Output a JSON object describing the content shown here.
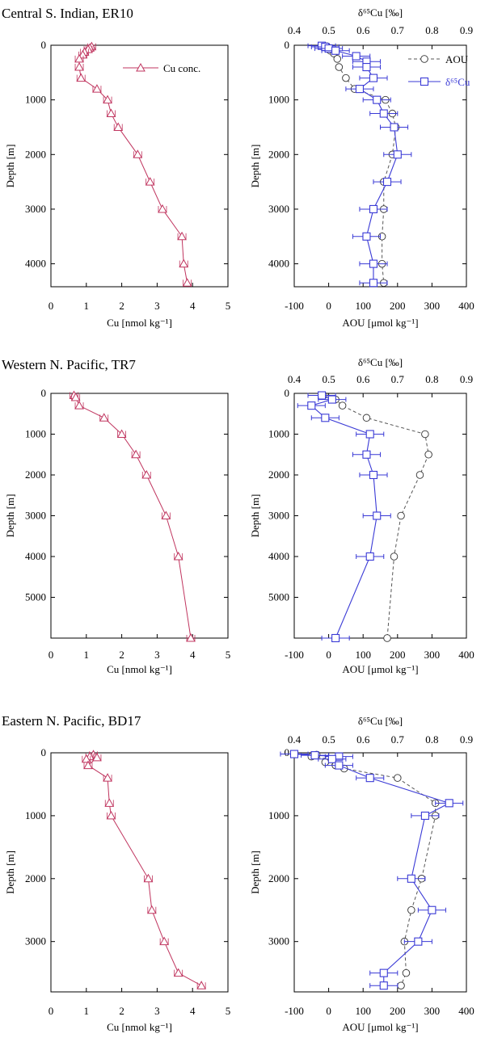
{
  "colors": {
    "cu": "#c0355f",
    "d65": "#3a3ad6",
    "aou": "#555555",
    "frame": "#000000"
  },
  "marker_names": {
    "cu": "triangle",
    "d65": "square",
    "aou": "circle"
  },
  "labels": {
    "cu_x": "Cu [nmol kg⁻¹]",
    "depth": "Depth [m]",
    "aou_x": "AOU [μmol kg⁻¹]",
    "d65_x": "δ⁶⁵Cu [‰]",
    "legend_cu": "Cu conc.",
    "legend_aou": "AOU",
    "legend_d65": "δ⁶⁵Cu"
  },
  "panels": [
    {
      "title": "Central S. Indian, ER10",
      "depth_max": 4420,
      "depth_ticks": [
        0,
        1000,
        2000,
        3000,
        4000
      ],
      "show_legend": true
    },
    {
      "title": "Western N. Pacific, TR7",
      "depth_max": 6000,
      "depth_ticks": [
        0,
        1000,
        2000,
        3000,
        4000,
        5000
      ],
      "show_legend": false
    },
    {
      "title": "Eastern N. Pacific, BD17",
      "depth_max": 3800,
      "depth_ticks": [
        0,
        1000,
        2000,
        3000
      ],
      "show_legend": false
    }
  ],
  "axes": {
    "cu_range": [
      0,
      5
    ],
    "cu_ticks": [
      0,
      1,
      2,
      3,
      4,
      5
    ],
    "aou_range": [
      -100,
      400
    ],
    "aou_ticks": [
      -100,
      0,
      100,
      200,
      300,
      400
    ],
    "d65_range": [
      0.4,
      0.9
    ],
    "d65_ticks": [
      0.4,
      0.5,
      0.6,
      0.7,
      0.8,
      0.9
    ],
    "d65_tick_text": [
      "0.4",
      "0.5",
      "0.6",
      "0.7",
      "0.8",
      "0.9"
    ]
  },
  "chart_data": [
    {
      "type": "line",
      "panel": 0,
      "title": "Central S. Indian, ER10",
      "xlabel": "Cu [nmol kg⁻¹]",
      "ylabel": "Depth [m]",
      "series": [
        {
          "name": "Cu conc.",
          "points": [
            [
              1.15,
              25
            ],
            [
              1.1,
              50
            ],
            [
              1.05,
              75
            ],
            [
              0.95,
              125
            ],
            [
              0.9,
              175
            ],
            [
              0.8,
              250
            ],
            [
              0.8,
              400
            ],
            [
              0.85,
              600
            ],
            [
              1.3,
              800
            ],
            [
              1.6,
              1000
            ],
            [
              1.7,
              1250
            ],
            [
              1.9,
              1500
            ],
            [
              2.45,
              2000
            ],
            [
              2.8,
              2500
            ],
            [
              3.15,
              3000
            ],
            [
              3.7,
              3500
            ],
            [
              3.75,
              4000
            ],
            [
              3.85,
              4350
            ]
          ]
        }
      ]
    },
    {
      "type": "line",
      "panel": 0,
      "title": "Central S. Indian, ER10",
      "xlabel": "AOU [μmol kg⁻¹]",
      "x2label": "δ⁶⁵Cu [‰]",
      "ylabel": "Depth [m]",
      "series": [
        {
          "name": "AOU",
          "axis": "AOU",
          "points": [
            [
              -5,
              20
            ],
            [
              0,
              60
            ],
            [
              5,
              100
            ],
            [
              15,
              150
            ],
            [
              25,
              250
            ],
            [
              30,
              400
            ],
            [
              50,
              600
            ],
            [
              75,
              800
            ],
            [
              165,
              1000
            ],
            [
              185,
              1250
            ],
            [
              195,
              1500
            ],
            [
              185,
              2000
            ],
            [
              160,
              2500
            ],
            [
              160,
              3000
            ],
            [
              155,
              3500
            ],
            [
              155,
              4000
            ],
            [
              160,
              4350
            ]
          ]
        },
        {
          "name": "δ⁶⁵Cu",
          "axis": "d65",
          "points": [
            [
              0.48,
              10
            ],
            [
              0.49,
              30
            ],
            [
              0.5,
              60
            ],
            [
              0.52,
              100
            ],
            [
              0.58,
              200
            ],
            [
              0.61,
              300
            ],
            [
              0.61,
              400
            ],
            [
              0.63,
              600
            ],
            [
              0.59,
              800
            ],
            [
              0.64,
              1000
            ],
            [
              0.66,
              1250
            ],
            [
              0.69,
              1500
            ],
            [
              0.7,
              2000
            ],
            [
              0.67,
              2500
            ],
            [
              0.63,
              3000
            ],
            [
              0.61,
              3500
            ],
            [
              0.63,
              4000
            ],
            [
              0.63,
              4350
            ]
          ],
          "error": 0.04
        }
      ]
    },
    {
      "type": "line",
      "panel": 1,
      "title": "Western N. Pacific, TR7",
      "xlabel": "Cu [nmol kg⁻¹]",
      "ylabel": "Depth [m]",
      "series": [
        {
          "name": "Cu conc.",
          "points": [
            [
              0.65,
              50
            ],
            [
              0.7,
              100
            ],
            [
              0.8,
              300
            ],
            [
              1.5,
              600
            ],
            [
              2.0,
              1000
            ],
            [
              2.4,
              1500
            ],
            [
              2.7,
              2000
            ],
            [
              3.25,
              3000
            ],
            [
              3.6,
              4000
            ],
            [
              3.95,
              6000
            ]
          ]
        }
      ]
    },
    {
      "type": "line",
      "panel": 1,
      "title": "Western N. Pacific, TR7",
      "xlabel": "AOU [μmol kg⁻¹]",
      "x2label": "δ⁶⁵Cu [‰]",
      "ylabel": "Depth [m]",
      "series": [
        {
          "name": "AOU",
          "axis": "AOU",
          "points": [
            [
              -15,
              50
            ],
            [
              20,
              150
            ],
            [
              40,
              300
            ],
            [
              110,
              600
            ],
            [
              280,
              1000
            ],
            [
              290,
              1500
            ],
            [
              265,
              2000
            ],
            [
              210,
              3000
            ],
            [
              190,
              4000
            ],
            [
              170,
              6000
            ]
          ]
        },
        {
          "name": "δ⁶⁵Cu",
          "axis": "d65",
          "points": [
            [
              0.48,
              50
            ],
            [
              0.51,
              150
            ],
            [
              0.45,
              300
            ],
            [
              0.49,
              600
            ],
            [
              0.62,
              1000
            ],
            [
              0.61,
              1500
            ],
            [
              0.63,
              2000
            ],
            [
              0.64,
              3000
            ],
            [
              0.62,
              4000
            ],
            [
              0.52,
              6000
            ]
          ],
          "error": 0.04
        }
      ]
    },
    {
      "type": "line",
      "panel": 2,
      "title": "Eastern N. Pacific, BD17",
      "xlabel": "Cu [nmol kg⁻¹]",
      "ylabel": "Depth [m]",
      "series": [
        {
          "name": "Cu conc.",
          "points": [
            [
              1.2,
              30
            ],
            [
              1.1,
              60
            ],
            [
              1.0,
              100
            ],
            [
              1.3,
              75
            ],
            [
              1.05,
              200
            ],
            [
              1.6,
              400
            ],
            [
              1.65,
              800
            ],
            [
              1.7,
              1000
            ],
            [
              2.75,
              2000
            ],
            [
              2.85,
              2500
            ],
            [
              3.2,
              3000
            ],
            [
              3.6,
              3500
            ],
            [
              4.25,
              3700
            ]
          ]
        }
      ]
    },
    {
      "type": "line",
      "panel": 2,
      "title": "Eastern N. Pacific, BD17",
      "xlabel": "AOU [μmol kg⁻¹]",
      "x2label": "δ⁶⁵Cu [‰]",
      "ylabel": "Depth [m]",
      "series": [
        {
          "name": "AOU",
          "axis": "AOU",
          "points": [
            [
              -35,
              30
            ],
            [
              -50,
              60
            ],
            [
              0,
              100
            ],
            [
              -10,
              150
            ],
            [
              20,
              200
            ],
            [
              45,
              250
            ],
            [
              200,
              400
            ],
            [
              310,
              800
            ],
            [
              310,
              1000
            ],
            [
              270,
              2000
            ],
            [
              240,
              2500
            ],
            [
              220,
              3000
            ],
            [
              225,
              3500
            ],
            [
              210,
              3700
            ]
          ]
        },
        {
          "name": "δ⁶⁵Cu",
          "axis": "d65",
          "points": [
            [
              0.4,
              20
            ],
            [
              0.46,
              40
            ],
            [
              0.53,
              60
            ],
            [
              0.51,
              100
            ],
            [
              0.53,
              200
            ],
            [
              0.62,
              400
            ],
            [
              0.85,
              800
            ],
            [
              0.78,
              1000
            ],
            [
              0.74,
              2000
            ],
            [
              0.8,
              2500
            ],
            [
              0.76,
              3000
            ],
            [
              0.66,
              3500
            ],
            [
              0.66,
              3700
            ]
          ],
          "error": 0.04
        }
      ]
    }
  ]
}
